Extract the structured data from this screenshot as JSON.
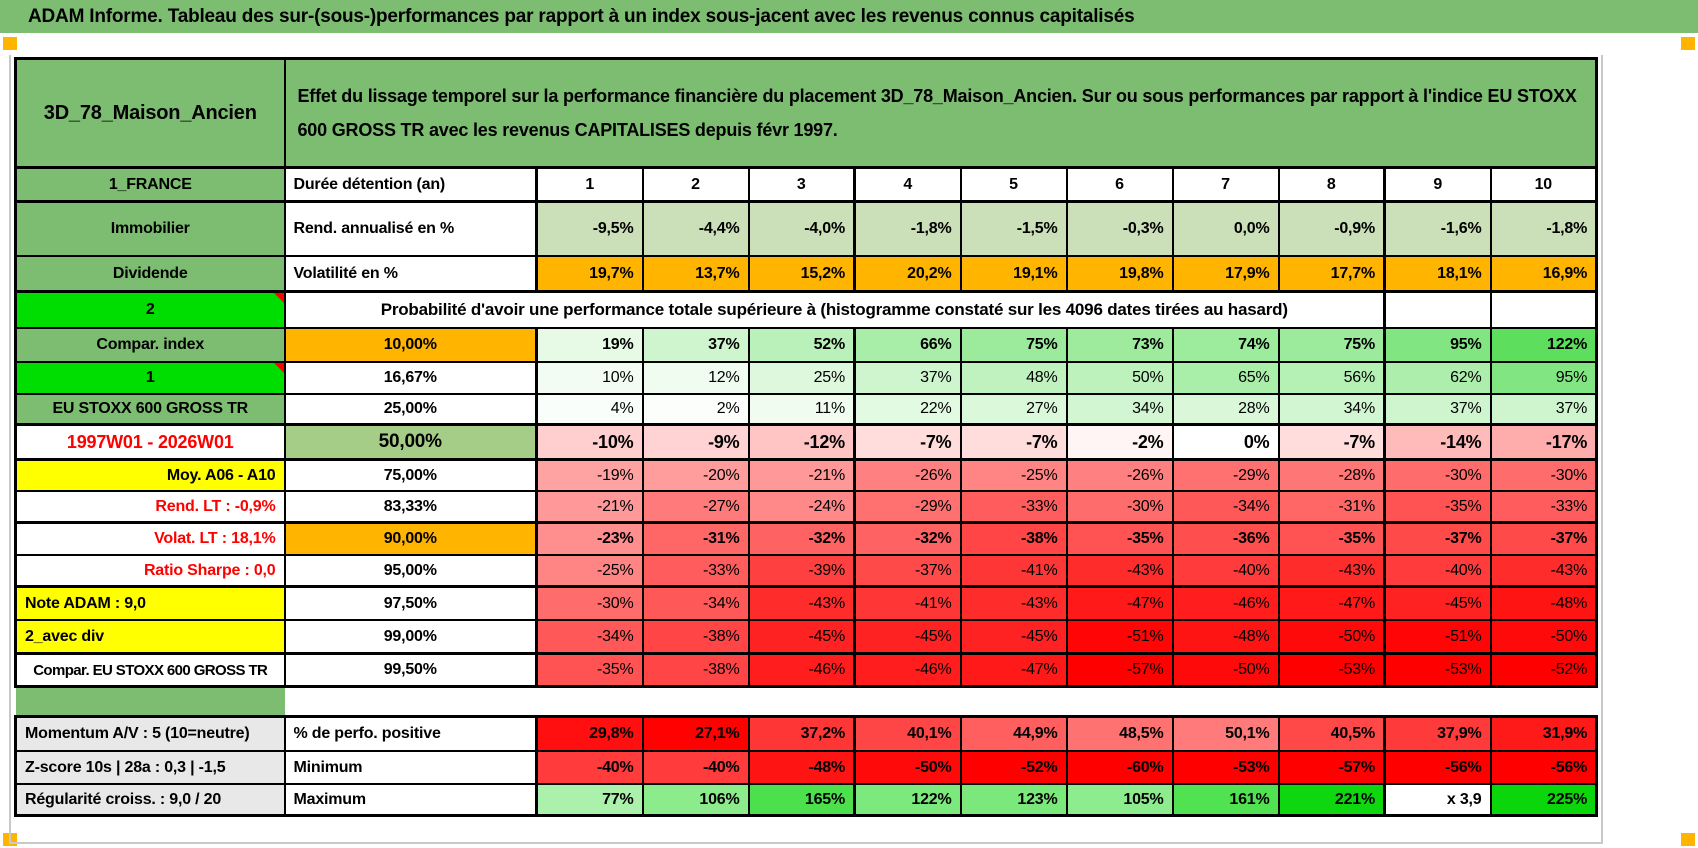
{
  "title": "ADAM Informe. Tableau des sur-(sous-)performances par rapport à un index sous-jacent avec les revenus connus capitalisés",
  "header": {
    "name": "3D_78_Maison_Ancien",
    "description": "Effet du lissage temporel sur la performance financière du placement 3D_78_Maison_Ancien. Sur ou sous performances par rapport à l'indice EU STOXX 600 GROSS TR avec les revenus CAPITALISES depuis févr 1997."
  },
  "colors": {
    "header_green": "#7dbd72",
    "bright_green": "#00dd00",
    "sage_green": "#cbdfb8",
    "olive_green": "#a6cd87",
    "orange": "#ffb400",
    "yellow": "#ffff00",
    "gray_label": "#e8e8e8",
    "red_text": "#ff0000",
    "marker_orange": "#ffb400"
  },
  "rows": [
    {
      "key": "duree",
      "a": "1_FRANCE",
      "a_style": "green",
      "b": "Durée détention (an)",
      "b_style": "left",
      "value_style": "colhead",
      "cmap": "white",
      "bold": true,
      "values": [
        "1",
        "2",
        "3",
        "4",
        "5",
        "6",
        "7",
        "8",
        "9",
        "10"
      ]
    },
    {
      "key": "rend",
      "a": "Immobilier",
      "a_style": "green",
      "b": "Rend. annualisé en %",
      "b_style": "left",
      "cmap": "sage",
      "bold": true,
      "values": [
        "-9,5%",
        "-4,4%",
        "-4,0%",
        "-1,8%",
        "-1,5%",
        "-0,3%",
        "0,0%",
        "-0,9%",
        "-1,6%",
        "-1,8%"
      ]
    },
    {
      "key": "volat",
      "a": "Dividende",
      "a_style": "green",
      "b": "Volatilité en %",
      "b_style": "left",
      "cmap": "orange",
      "bold": true,
      "values": [
        "19,7%",
        "13,7%",
        "15,2%",
        "20,2%",
        "19,1%",
        "19,8%",
        "17,9%",
        "17,7%",
        "18,1%",
        "16,9%"
      ]
    },
    {
      "key": "prob",
      "a": "2",
      "a_style": "bright",
      "comment": true,
      "note": "Probabilité d'avoir une performance totale supérieure à (histogramme constaté sur les 4096 dates tirées au hasard)"
    },
    {
      "key": "p10",
      "a": "Compar. index",
      "a_style": "green",
      "b": "10,00%",
      "b_style": "orange",
      "cmap": "prob",
      "bold": true,
      "values": [
        "19%",
        "37%",
        "52%",
        "66%",
        "75%",
        "73%",
        "74%",
        "75%",
        "95%",
        "122%"
      ]
    },
    {
      "key": "p16_67",
      "a": "1",
      "a_style": "bright",
      "comment": true,
      "b": "16,67%",
      "b_style": "center",
      "cmap": "prob",
      "bold": false,
      "values": [
        "10%",
        "12%",
        "25%",
        "37%",
        "48%",
        "50%",
        "65%",
        "56%",
        "62%",
        "95%"
      ]
    },
    {
      "key": "p25",
      "a": "EU STOXX 600 GROSS TR",
      "a_style": "green",
      "b": "25,00%",
      "b_style": "center",
      "cmap": "prob",
      "bold": false,
      "values": [
        "4%",
        "2%",
        "11%",
        "22%",
        "27%",
        "34%",
        "28%",
        "34%",
        "37%",
        "37%"
      ]
    },
    {
      "key": "p50",
      "a": "1997W01 - 2026W01",
      "a_style": "red-center",
      "b": "50,00%",
      "b_style": "olive",
      "cmap": "prob",
      "bold": true,
      "values": [
        "-10%",
        "-9%",
        "-12%",
        "-7%",
        "-7%",
        "-2%",
        "0%",
        "-7%",
        "-14%",
        "-17%"
      ]
    },
    {
      "key": "p75",
      "a": "Moy. A06 - A10",
      "a_style": "yellow-right",
      "b": "75,00%",
      "b_style": "center",
      "cmap": "prob",
      "bold": false,
      "values": [
        "-19%",
        "-20%",
        "-21%",
        "-26%",
        "-25%",
        "-26%",
        "-29%",
        "-28%",
        "-30%",
        "-30%"
      ]
    },
    {
      "key": "p83_33",
      "a": "Rend. LT :   -0,9%",
      "a_style": "red-right",
      "b": "83,33%",
      "b_style": "center",
      "cmap": "prob",
      "bold": false,
      "values": [
        "-21%",
        "-27%",
        "-24%",
        "-29%",
        "-33%",
        "-30%",
        "-34%",
        "-31%",
        "-35%",
        "-33%"
      ]
    },
    {
      "key": "p90",
      "a": "Volat. LT :   18,1%",
      "a_style": "red-right",
      "b": "90,00%",
      "b_style": "orange",
      "cmap": "prob",
      "bold": true,
      "values": [
        "-23%",
        "-31%",
        "-32%",
        "-32%",
        "-38%",
        "-35%",
        "-36%",
        "-35%",
        "-37%",
        "-37%"
      ]
    },
    {
      "key": "p95",
      "a": "Ratio Sharpe :   0,0",
      "a_style": "red-right",
      "b": "95,00%",
      "b_style": "center",
      "cmap": "prob",
      "bold": false,
      "values": [
        "-25%",
        "-33%",
        "-39%",
        "-37%",
        "-41%",
        "-43%",
        "-40%",
        "-43%",
        "-40%",
        "-43%"
      ]
    },
    {
      "key": "p97_5",
      "a": "Note ADAM : 9,0",
      "a_style": "yellow-left",
      "b": "97,50%",
      "b_style": "center",
      "cmap": "prob",
      "bold": false,
      "values": [
        "-30%",
        "-34%",
        "-43%",
        "-41%",
        "-43%",
        "-47%",
        "-46%",
        "-47%",
        "-45%",
        "-48%"
      ]
    },
    {
      "key": "p99",
      "a": "2_avec div",
      "a_style": "yellow-left",
      "b": "99,00%",
      "b_style": "center",
      "cmap": "prob",
      "bold": false,
      "values": [
        "-34%",
        "-38%",
        "-45%",
        "-45%",
        "-45%",
        "-51%",
        "-48%",
        "-50%",
        "-51%",
        "-50%"
      ]
    },
    {
      "key": "p99_5",
      "a": "Compar. EU STOXX 600 GROSS TR",
      "a_style": "plain-center",
      "b": "99,50%",
      "b_style": "center",
      "cmap": "prob",
      "bold": false,
      "values": [
        "-35%",
        "-38%",
        "-46%",
        "-46%",
        "-47%",
        "-57%",
        "-50%",
        "-53%",
        "-53%",
        "-52%"
      ]
    },
    {
      "key": "gap"
    },
    {
      "key": "mom",
      "a": "Momentum A/V : 5 (10=neutre)",
      "a_style": "gray-left",
      "b": "% de perfo. positive",
      "b_style": "left",
      "cmap": "perfo",
      "bold": true,
      "values": [
        "29,8%",
        "27,1%",
        "37,2%",
        "40,1%",
        "44,9%",
        "48,5%",
        "50,1%",
        "40,5%",
        "37,9%",
        "31,9%"
      ]
    },
    {
      "key": "min",
      "a": "Z-score 10s | 28a : 0,3 | -1,5",
      "a_style": "gray-left",
      "b": "Minimum",
      "b_style": "left",
      "cmap": "min",
      "bold": true,
      "values": [
        "-40%",
        "-40%",
        "-48%",
        "-50%",
        "-52%",
        "-60%",
        "-53%",
        "-57%",
        "-56%",
        "-56%"
      ]
    },
    {
      "key": "reg",
      "a": "Régularité croiss. : 9,0 / 20",
      "a_style": "gray-left",
      "b": "Maximum",
      "b_style": "left",
      "cmap": "max",
      "bold": true,
      "values": [
        "77%",
        "106%",
        "165%",
        "122%",
        "123%",
        "105%",
        "161%",
        "221%",
        "x 3,9",
        "225%"
      ]
    }
  ]
}
